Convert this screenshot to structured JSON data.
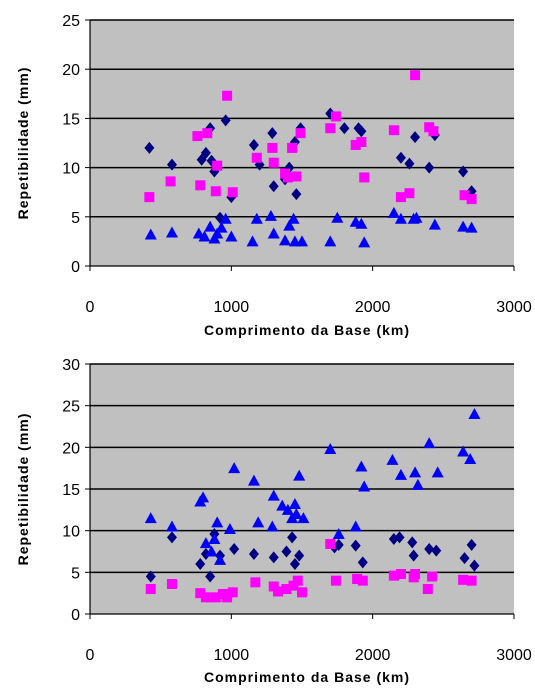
{
  "colors": {
    "plot_bg": "#c0c0c0",
    "grid": "#000000",
    "diamond": "#000080",
    "square": "#ff00ff",
    "triangle": "#0000ff"
  },
  "chart_data": [
    {
      "type": "scatter",
      "title": "",
      "xlabel": "Comprimento da Base (km)",
      "ylabel": "Repetibilidade (mm)",
      "xlim": [
        0,
        3000
      ],
      "ylim": [
        0,
        25
      ],
      "x_ticks": [
        "0",
        "1000",
        "2000",
        "3000"
      ],
      "y_ticks": [
        "0",
        "5",
        "10",
        "15",
        "20",
        "25"
      ],
      "grid": "horizontal",
      "series": [
        {
          "marker": "diamond",
          "points": [
            [
              420,
              12.0
            ],
            [
              580,
              10.3
            ],
            [
              790,
              10.8
            ],
            [
              820,
              11.5
            ],
            [
              850,
              14.0
            ],
            [
              860,
              10.7
            ],
            [
              880,
              9.6
            ],
            [
              920,
              4.9
            ],
            [
              960,
              14.8
            ],
            [
              1000,
              7.0
            ],
            [
              1160,
              12.3
            ],
            [
              1200,
              10.3
            ],
            [
              1290,
              13.5
            ],
            [
              1300,
              8.1
            ],
            [
              1380,
              8.8
            ],
            [
              1410,
              10.0
            ],
            [
              1450,
              12.6
            ],
            [
              1460,
              7.3
            ],
            [
              1490,
              14.0
            ],
            [
              1700,
              15.5
            ],
            [
              1800,
              14.0
            ],
            [
              1900,
              14.0
            ],
            [
              1920,
              13.7
            ],
            [
              2200,
              11.0
            ],
            [
              2260,
              10.4
            ],
            [
              2300,
              13.1
            ],
            [
              2400,
              10.0
            ],
            [
              2440,
              13.3
            ],
            [
              2640,
              9.6
            ],
            [
              2700,
              7.6
            ]
          ]
        },
        {
          "marker": "square",
          "points": [
            [
              420,
              7.0
            ],
            [
              570,
              8.6
            ],
            [
              760,
              13.2
            ],
            [
              780,
              8.2
            ],
            [
              830,
              13.5
            ],
            [
              890,
              7.6
            ],
            [
              900,
              10.2
            ],
            [
              970,
              17.3
            ],
            [
              1010,
              7.5
            ],
            [
              1180,
              11.0
            ],
            [
              1290,
              12.0
            ],
            [
              1300,
              10.5
            ],
            [
              1380,
              9.4
            ],
            [
              1400,
              9.0
            ],
            [
              1430,
              12.0
            ],
            [
              1460,
              9.1
            ],
            [
              1490,
              13.5
            ],
            [
              1700,
              14.0
            ],
            [
              1740,
              15.2
            ],
            [
              1880,
              12.3
            ],
            [
              1920,
              12.6
            ],
            [
              1940,
              9.0
            ],
            [
              2150,
              13.8
            ],
            [
              2200,
              7.0
            ],
            [
              2260,
              7.4
            ],
            [
              2300,
              19.4
            ],
            [
              2400,
              14.1
            ],
            [
              2430,
              13.7
            ],
            [
              2650,
              7.2
            ],
            [
              2700,
              6.8
            ]
          ]
        },
        {
          "marker": "triangle",
          "points": [
            [
              430,
              3.2
            ],
            [
              580,
              3.4
            ],
            [
              770,
              3.3
            ],
            [
              810,
              3.0
            ],
            [
              850,
              4.0
            ],
            [
              880,
              2.8
            ],
            [
              900,
              3.3
            ],
            [
              930,
              3.9
            ],
            [
              960,
              4.8
            ],
            [
              1000,
              3.0
            ],
            [
              1150,
              2.5
            ],
            [
              1180,
              4.8
            ],
            [
              1280,
              5.1
            ],
            [
              1300,
              3.3
            ],
            [
              1380,
              2.6
            ],
            [
              1410,
              4.1
            ],
            [
              1440,
              4.8
            ],
            [
              1450,
              2.5
            ],
            [
              1500,
              2.5
            ],
            [
              1700,
              2.5
            ],
            [
              1750,
              4.9
            ],
            [
              1880,
              4.5
            ],
            [
              1920,
              4.3
            ],
            [
              1940,
              2.4
            ],
            [
              2150,
              5.4
            ],
            [
              2200,
              4.8
            ],
            [
              2290,
              4.8
            ],
            [
              2310,
              4.9
            ],
            [
              2440,
              4.2
            ],
            [
              2640,
              4.0
            ],
            [
              2700,
              3.9
            ]
          ]
        }
      ]
    },
    {
      "type": "scatter",
      "title": "",
      "xlabel": "Comprimento da Base (km)",
      "ylabel": "Repetibilidade (mm)",
      "xlim": [
        0,
        3000
      ],
      "ylim": [
        0,
        30
      ],
      "x_ticks": [
        "0",
        "1000",
        "2000",
        "3000"
      ],
      "y_ticks": [
        "0",
        "5",
        "10",
        "15",
        "20",
        "25",
        "30"
      ],
      "grid": "horizontal",
      "series": [
        {
          "marker": "diamond",
          "points": [
            [
              430,
              4.5
            ],
            [
              580,
              9.2
            ],
            [
              780,
              6.0
            ],
            [
              820,
              7.2
            ],
            [
              850,
              4.5
            ],
            [
              880,
              9.6
            ],
            [
              920,
              7.0
            ],
            [
              1020,
              7.8
            ],
            [
              1160,
              7.2
            ],
            [
              1300,
              6.8
            ],
            [
              1390,
              7.5
            ],
            [
              1430,
              9.2
            ],
            [
              1450,
              6.0
            ],
            [
              1480,
              7.0
            ],
            [
              1730,
              8.0
            ],
            [
              1760,
              8.3
            ],
            [
              1880,
              8.2
            ],
            [
              1930,
              6.2
            ],
            [
              2150,
              9.0
            ],
            [
              2190,
              9.2
            ],
            [
              2280,
              8.6
            ],
            [
              2290,
              7.0
            ],
            [
              2400,
              7.8
            ],
            [
              2450,
              7.6
            ],
            [
              2650,
              6.7
            ],
            [
              2700,
              8.3
            ],
            [
              2720,
              5.8
            ]
          ]
        },
        {
          "marker": "square",
          "points": [
            [
              430,
              3.0
            ],
            [
              580,
              3.6
            ],
            [
              780,
              2.5
            ],
            [
              820,
              2.0
            ],
            [
              890,
              2.0
            ],
            [
              940,
              2.4
            ],
            [
              970,
              2.0
            ],
            [
              1010,
              2.6
            ],
            [
              1170,
              3.8
            ],
            [
              1300,
              3.3
            ],
            [
              1330,
              2.7
            ],
            [
              1390,
              3.0
            ],
            [
              1440,
              3.4
            ],
            [
              1470,
              4.0
            ],
            [
              1500,
              2.6
            ],
            [
              1700,
              8.4
            ],
            [
              1740,
              4.0
            ],
            [
              1890,
              4.2
            ],
            [
              1930,
              4.0
            ],
            [
              2150,
              4.6
            ],
            [
              2200,
              4.8
            ],
            [
              2290,
              4.4
            ],
            [
              2300,
              4.8
            ],
            [
              2390,
              3.0
            ],
            [
              2420,
              4.5
            ],
            [
              2640,
              4.1
            ],
            [
              2700,
              4.0
            ]
          ]
        },
        {
          "marker": "triangle",
          "points": [
            [
              430,
              11.5
            ],
            [
              580,
              10.5
            ],
            [
              780,
              13.5
            ],
            [
              800,
              14.0
            ],
            [
              820,
              8.5
            ],
            [
              860,
              7.5
            ],
            [
              880,
              9.0
            ],
            [
              900,
              11.0
            ],
            [
              920,
              6.5
            ],
            [
              990,
              10.2
            ],
            [
              1020,
              17.5
            ],
            [
              1160,
              16.0
            ],
            [
              1190,
              11.0
            ],
            [
              1290,
              10.5
            ],
            [
              1300,
              14.2
            ],
            [
              1360,
              13.0
            ],
            [
              1400,
              12.5
            ],
            [
              1430,
              11.5
            ],
            [
              1450,
              13.2
            ],
            [
              1460,
              12.0
            ],
            [
              1480,
              16.6
            ],
            [
              1510,
              11.5
            ],
            [
              1700,
              19.8
            ],
            [
              1760,
              9.6
            ],
            [
              1880,
              10.5
            ],
            [
              1920,
              17.7
            ],
            [
              1940,
              15.3
            ],
            [
              2140,
              18.5
            ],
            [
              2200,
              16.7
            ],
            [
              2300,
              17.0
            ],
            [
              2320,
              15.5
            ],
            [
              2400,
              20.5
            ],
            [
              2460,
              17.0
            ],
            [
              2640,
              19.5
            ],
            [
              2690,
              18.6
            ],
            [
              2720,
              24.0
            ]
          ]
        }
      ]
    }
  ]
}
